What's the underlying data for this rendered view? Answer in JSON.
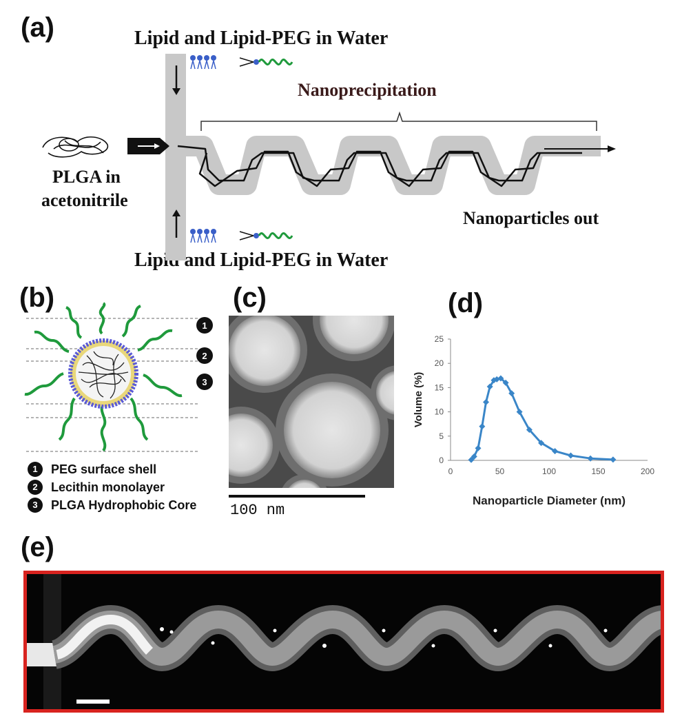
{
  "panels": {
    "a": "(a)",
    "b": "(b)",
    "c": "(c)",
    "d": "(d)",
    "e": "(e)"
  },
  "panel_a": {
    "top_inlet": "Lipid  and Lipid-PEG in Water",
    "bottom_inlet": "Lipid  and Lipid-PEG in Water",
    "process": "Nanoprecipitation",
    "left_inlet_line1": "PLGA in",
    "left_inlet_line2": "acetonitrile",
    "outlet": "Nanoparticles out"
  },
  "panel_b": {
    "legend": [
      {
        "num": "1",
        "label": "PEG surface shell"
      },
      {
        "num": "2",
        "label": "Lecithin monolayer"
      },
      {
        "num": "3",
        "label": "PLGA Hydrophobic Core"
      }
    ]
  },
  "panel_c": {
    "scale_label": "100 nm"
  },
  "chart_data": {
    "type": "line",
    "xlabel": "Nanoparticle Diameter (nm)",
    "ylabel": "Volume (%)",
    "xlim": [
      0,
      200
    ],
    "ylim": [
      0,
      25
    ],
    "xticks": [
      "0",
      "50",
      "100",
      "150",
      "200"
    ],
    "yticks": [
      "0",
      "5",
      "10",
      "15",
      "20",
      "25"
    ],
    "grid": false,
    "series": [
      {
        "color": "#3a86c8",
        "x": [
          21,
          24,
          28,
          32,
          36,
          40,
          44,
          47,
          51,
          56,
          62,
          70,
          80,
          92,
          106,
          122,
          142,
          165
        ],
        "y": [
          0.1,
          0.8,
          2.5,
          7.0,
          12.0,
          15.2,
          16.5,
          16.7,
          16.9,
          16.0,
          13.8,
          10.0,
          6.3,
          3.6,
          1.9,
          1.0,
          0.4,
          0.15
        ]
      }
    ]
  },
  "colors": {
    "border_red": "#d8231f",
    "peg_green": "#1f9a3c",
    "lipid_blue": "#3a5fc8",
    "channel_gray": "#c8c8c8"
  }
}
